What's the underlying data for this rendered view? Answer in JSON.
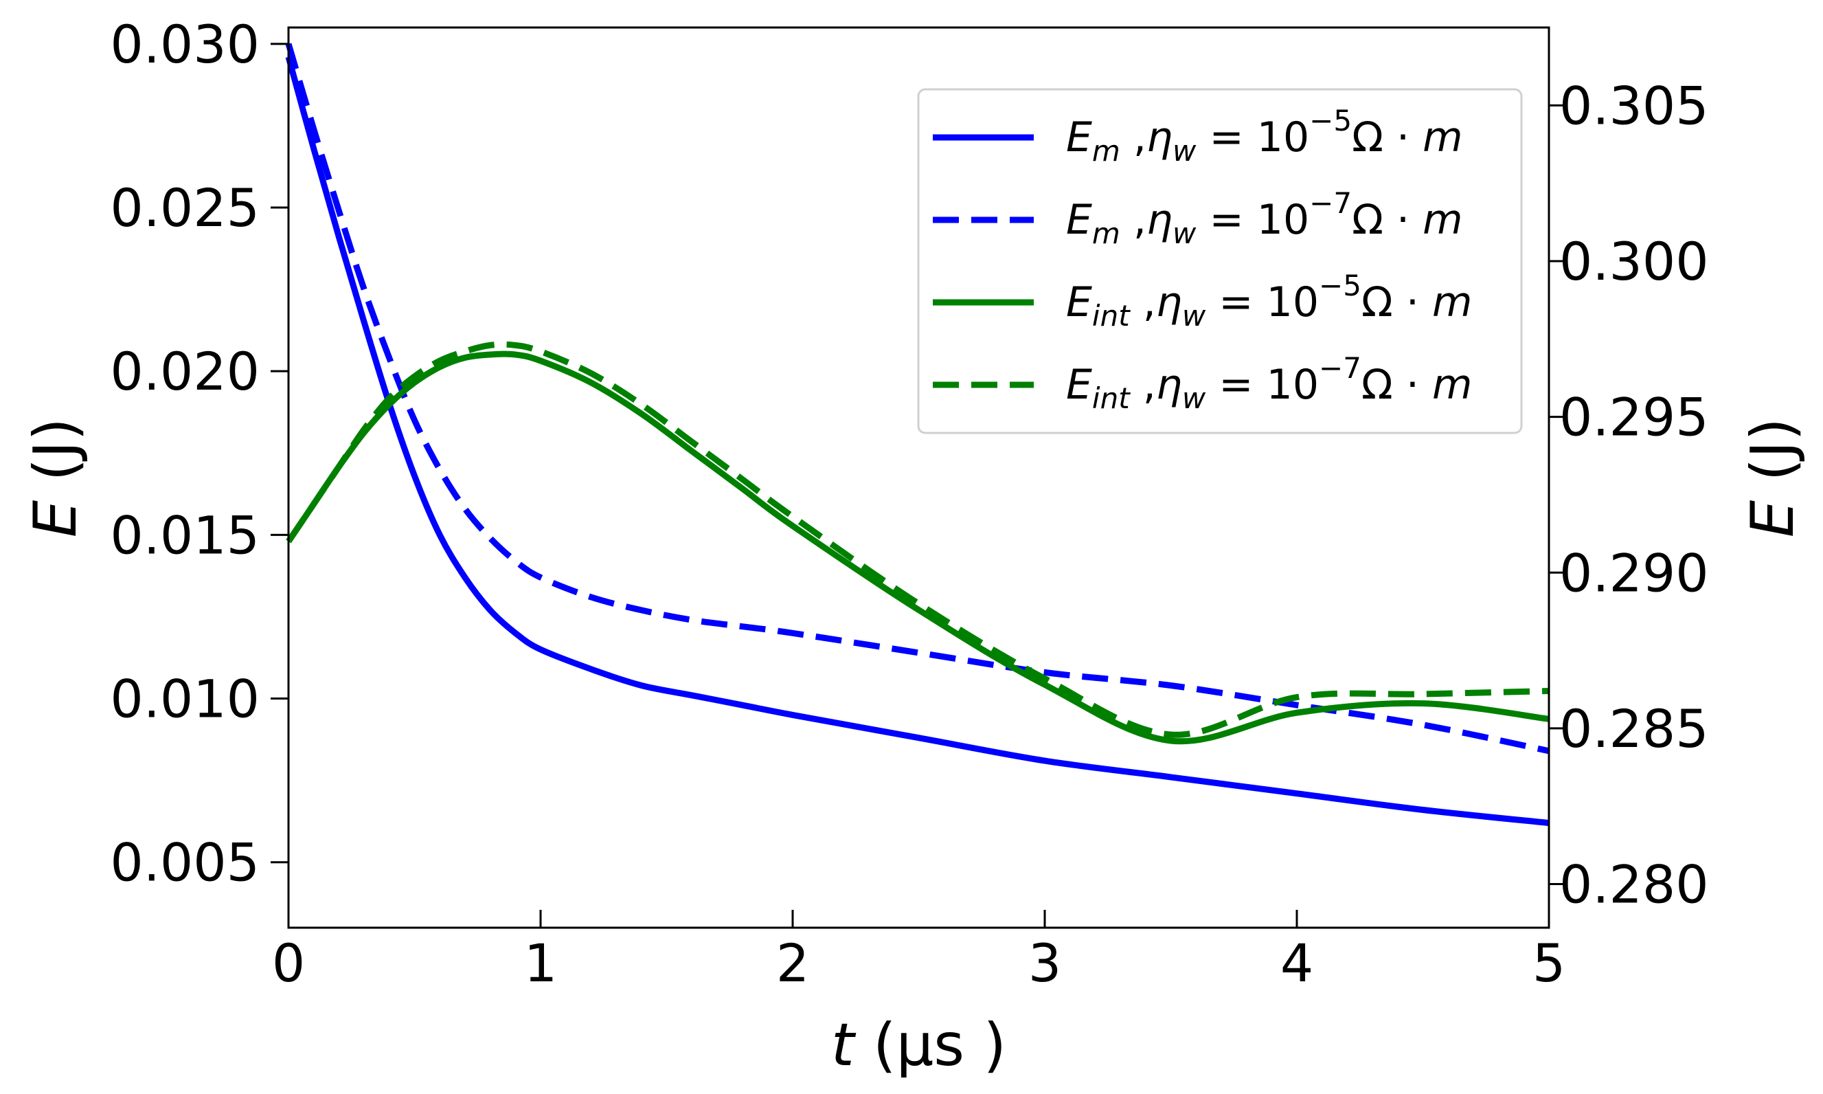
{
  "chart_data": {
    "type": "line",
    "x_axis": {
      "var": "t",
      "unit": "(μs )",
      "range": [
        0,
        5
      ],
      "ticks": [
        0,
        1,
        2,
        3,
        4,
        5
      ],
      "tick_labels": [
        "0",
        "1",
        "2",
        "3",
        "4",
        "5"
      ]
    },
    "y_left": {
      "var": "E",
      "unit": "(J)",
      "range": [
        0.003,
        0.0305
      ],
      "ticks": [
        0.005,
        0.01,
        0.015,
        0.02,
        0.025,
        0.03
      ],
      "tick_labels": [
        "0.005",
        "0.010",
        "0.015",
        "0.020",
        "0.025",
        "0.030"
      ]
    },
    "y_right": {
      "var": "E",
      "unit": "(J)",
      "range": [
        0.2786,
        0.3075
      ],
      "ticks": [
        0.28,
        0.285,
        0.29,
        0.295,
        0.3,
        0.305
      ],
      "tick_labels": [
        "0.280",
        "0.285",
        "0.290",
        "0.295",
        "0.300",
        "0.305"
      ]
    },
    "grid": false,
    "legend_position": "top-right",
    "series": [
      {
        "name": "E_m ,η_w = 10^-5 Ω·m",
        "label": {
          "sym": "E",
          "sub": "m",
          "exp": "−5"
        },
        "axis": "left",
        "color": "#0000ff",
        "dash": "solid",
        "x": [
          0,
          0.1,
          0.2,
          0.3,
          0.4,
          0.5,
          0.6,
          0.7,
          0.8,
          0.9,
          1.0,
          1.2,
          1.4,
          1.6,
          1.8,
          2.0,
          2.5,
          3.0,
          3.5,
          4.0,
          4.5,
          5.0
        ],
        "y": [
          0.0296,
          0.0268,
          0.0241,
          0.0215,
          0.019,
          0.0168,
          0.015,
          0.0137,
          0.0127,
          0.012,
          0.0115,
          0.0109,
          0.0104,
          0.0101,
          0.0098,
          0.0095,
          0.0088,
          0.0081,
          0.0076,
          0.0071,
          0.0066,
          0.0062
        ]
      },
      {
        "name": "E_m ,η_w = 10^-7 Ω·m",
        "label": {
          "sym": "E",
          "sub": "m",
          "exp": "−7"
        },
        "axis": "left",
        "color": "#0000ff",
        "dash": "dashed",
        "x": [
          0,
          0.1,
          0.2,
          0.3,
          0.4,
          0.5,
          0.6,
          0.7,
          0.8,
          0.9,
          1.0,
          1.2,
          1.4,
          1.6,
          1.8,
          2.0,
          2.5,
          3.0,
          3.5,
          4.0,
          4.5,
          5.0
        ],
        "y": [
          0.03,
          0.0274,
          0.0249,
          0.0225,
          0.0204,
          0.0185,
          0.017,
          0.0158,
          0.0149,
          0.0142,
          0.0137,
          0.0131,
          0.0127,
          0.0124,
          0.0122,
          0.012,
          0.0114,
          0.0108,
          0.0104,
          0.0098,
          0.0092,
          0.0084
        ]
      },
      {
        "name": "E_int ,η_w = 10^-5 Ω·m",
        "label": {
          "sym": "E",
          "sub": "int",
          "exp": "−5"
        },
        "axis": "right",
        "color": "#008000",
        "dash": "solid",
        "x": [
          0,
          0.1,
          0.2,
          0.3,
          0.4,
          0.5,
          0.6,
          0.7,
          0.8,
          0.9,
          1.0,
          1.2,
          1.4,
          1.6,
          1.8,
          2.0,
          2.5,
          3.0,
          3.5,
          4.0,
          4.5,
          5.0
        ],
        "y": [
          0.291,
          0.2922,
          0.2934,
          0.2945,
          0.2954,
          0.2961,
          0.2966,
          0.2969,
          0.297,
          0.297,
          0.2968,
          0.2961,
          0.2951,
          0.2939,
          0.2927,
          0.2915,
          0.2888,
          0.2864,
          0.2846,
          0.2855,
          0.2858,
          0.2853
        ]
      },
      {
        "name": "E_int ,η_w = 10^-7 Ω·m",
        "label": {
          "sym": "E",
          "sub": "int",
          "exp": "−7"
        },
        "axis": "right",
        "color": "#008000",
        "dash": "dashed",
        "x": [
          0,
          0.1,
          0.2,
          0.3,
          0.4,
          0.5,
          0.6,
          0.7,
          0.8,
          0.9,
          1.0,
          1.2,
          1.4,
          1.6,
          1.8,
          2.0,
          2.5,
          3.0,
          3.5,
          4.0,
          4.5,
          5.0
        ],
        "y": [
          0.291,
          0.2922,
          0.2934,
          0.2946,
          0.2956,
          0.2963,
          0.2968,
          0.2971,
          0.2973,
          0.2973,
          0.2971,
          0.2964,
          0.2954,
          0.2942,
          0.293,
          0.2918,
          0.289,
          0.2866,
          0.2848,
          0.286,
          0.2861,
          0.2862
        ]
      }
    ]
  }
}
